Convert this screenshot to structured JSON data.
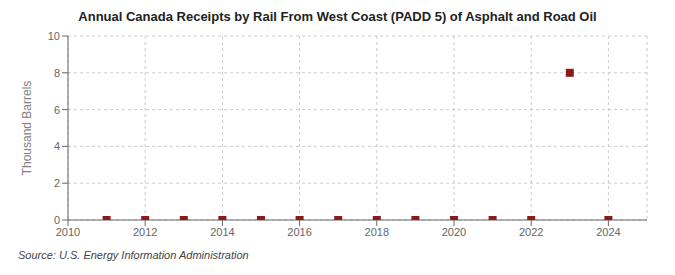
{
  "chart_data": {
    "type": "scatter",
    "title": "Annual Canada Receipts by Rail From West Coast (PADD 5) of Asphalt and Road Oil",
    "ylabel": "Thousand Barrels",
    "annotations": [
      "Source: U.S. Energy Information Administration"
    ],
    "x": [
      2011,
      2012,
      2013,
      2014,
      2015,
      2016,
      2017,
      2018,
      2019,
      2020,
      2021,
      2022,
      2023,
      2024
    ],
    "values": [
      0,
      0,
      0,
      0,
      0,
      0,
      0,
      0,
      0,
      0,
      0,
      0,
      8,
      0
    ],
    "color": "#8B1A1A",
    "marker": "square",
    "xlim": [
      2010,
      2025
    ],
    "ylim": [
      0,
      10
    ],
    "xticks": [
      2010,
      2012,
      2014,
      2016,
      2018,
      2020,
      2022,
      2024
    ],
    "yticks": [
      0,
      2,
      4,
      6,
      8,
      10
    ],
    "grid": true
  }
}
